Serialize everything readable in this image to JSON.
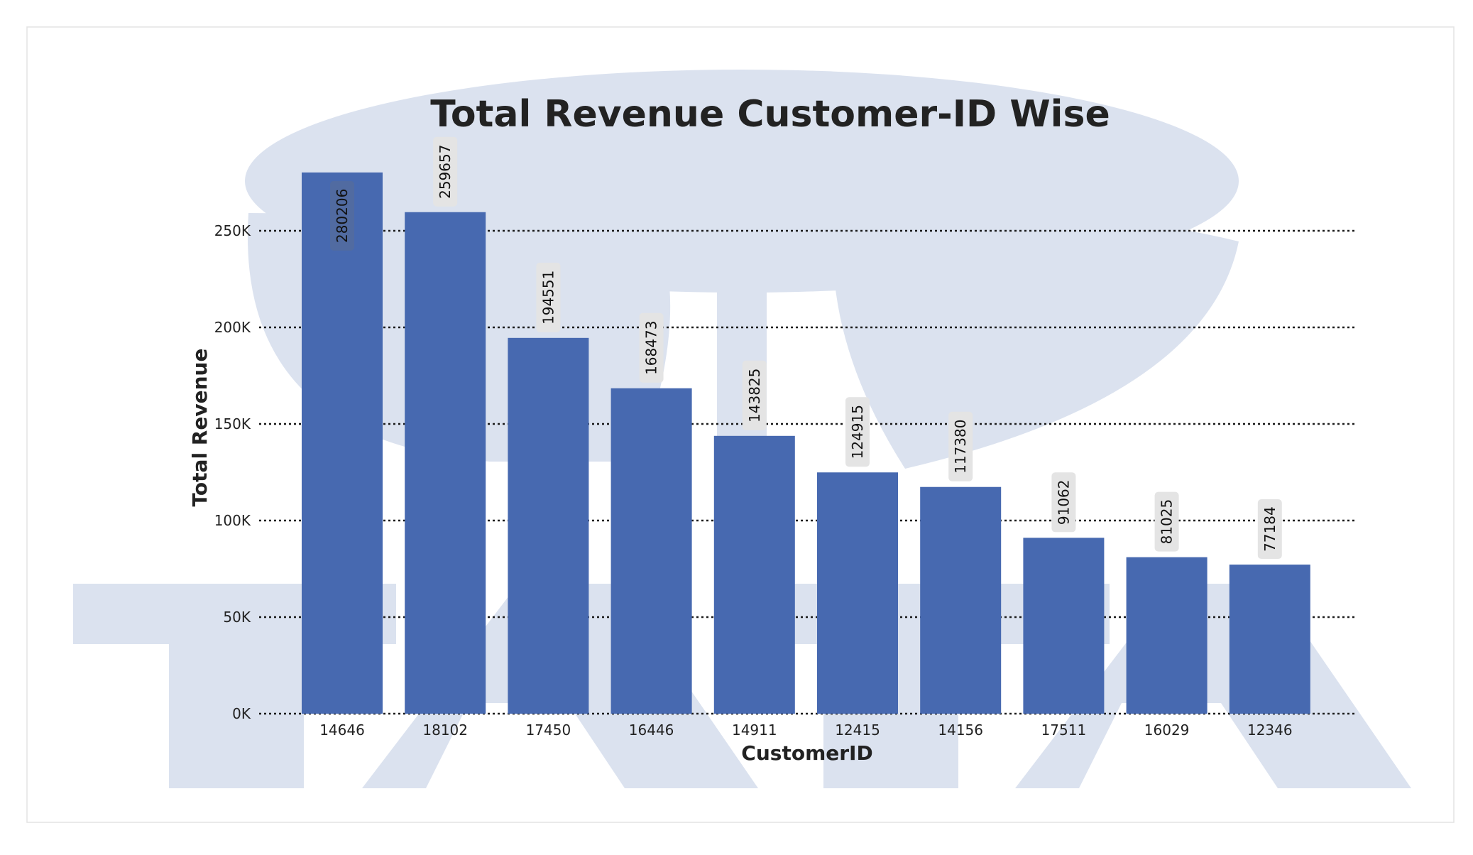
{
  "colors": {
    "bar": "#4769b0",
    "watermark": "#dbe2ef",
    "grid": "#1a1a1a",
    "label_box": "#e4e4e4",
    "text": "#222222"
  },
  "watermark": {
    "icon": "tata-logo-watermark"
  },
  "chart_data": {
    "type": "bar",
    "title": "Total Revenue Customer-ID Wise",
    "xlabel": "CustomerID",
    "ylabel": "Total Revenue",
    "categories": [
      "14646",
      "18102",
      "17450",
      "16446",
      "14911",
      "12415",
      "14156",
      "17511",
      "16029",
      "12346"
    ],
    "values": [
      280206,
      259657,
      194551,
      168473,
      143825,
      124915,
      117380,
      91062,
      81025,
      77184
    ],
    "data_labels": [
      "280206",
      "259657",
      "194551",
      "168473",
      "143825",
      "124915",
      "117380",
      "91062",
      "81025",
      "77184"
    ],
    "ylim": [
      0,
      250000
    ],
    "yticks": [
      0,
      50000,
      100000,
      150000,
      200000,
      250000
    ],
    "ytick_labels": [
      "0K",
      "50K",
      "100K",
      "150K",
      "200K",
      "250K"
    ],
    "grid": "horizontal-dotted",
    "legend": "none"
  }
}
